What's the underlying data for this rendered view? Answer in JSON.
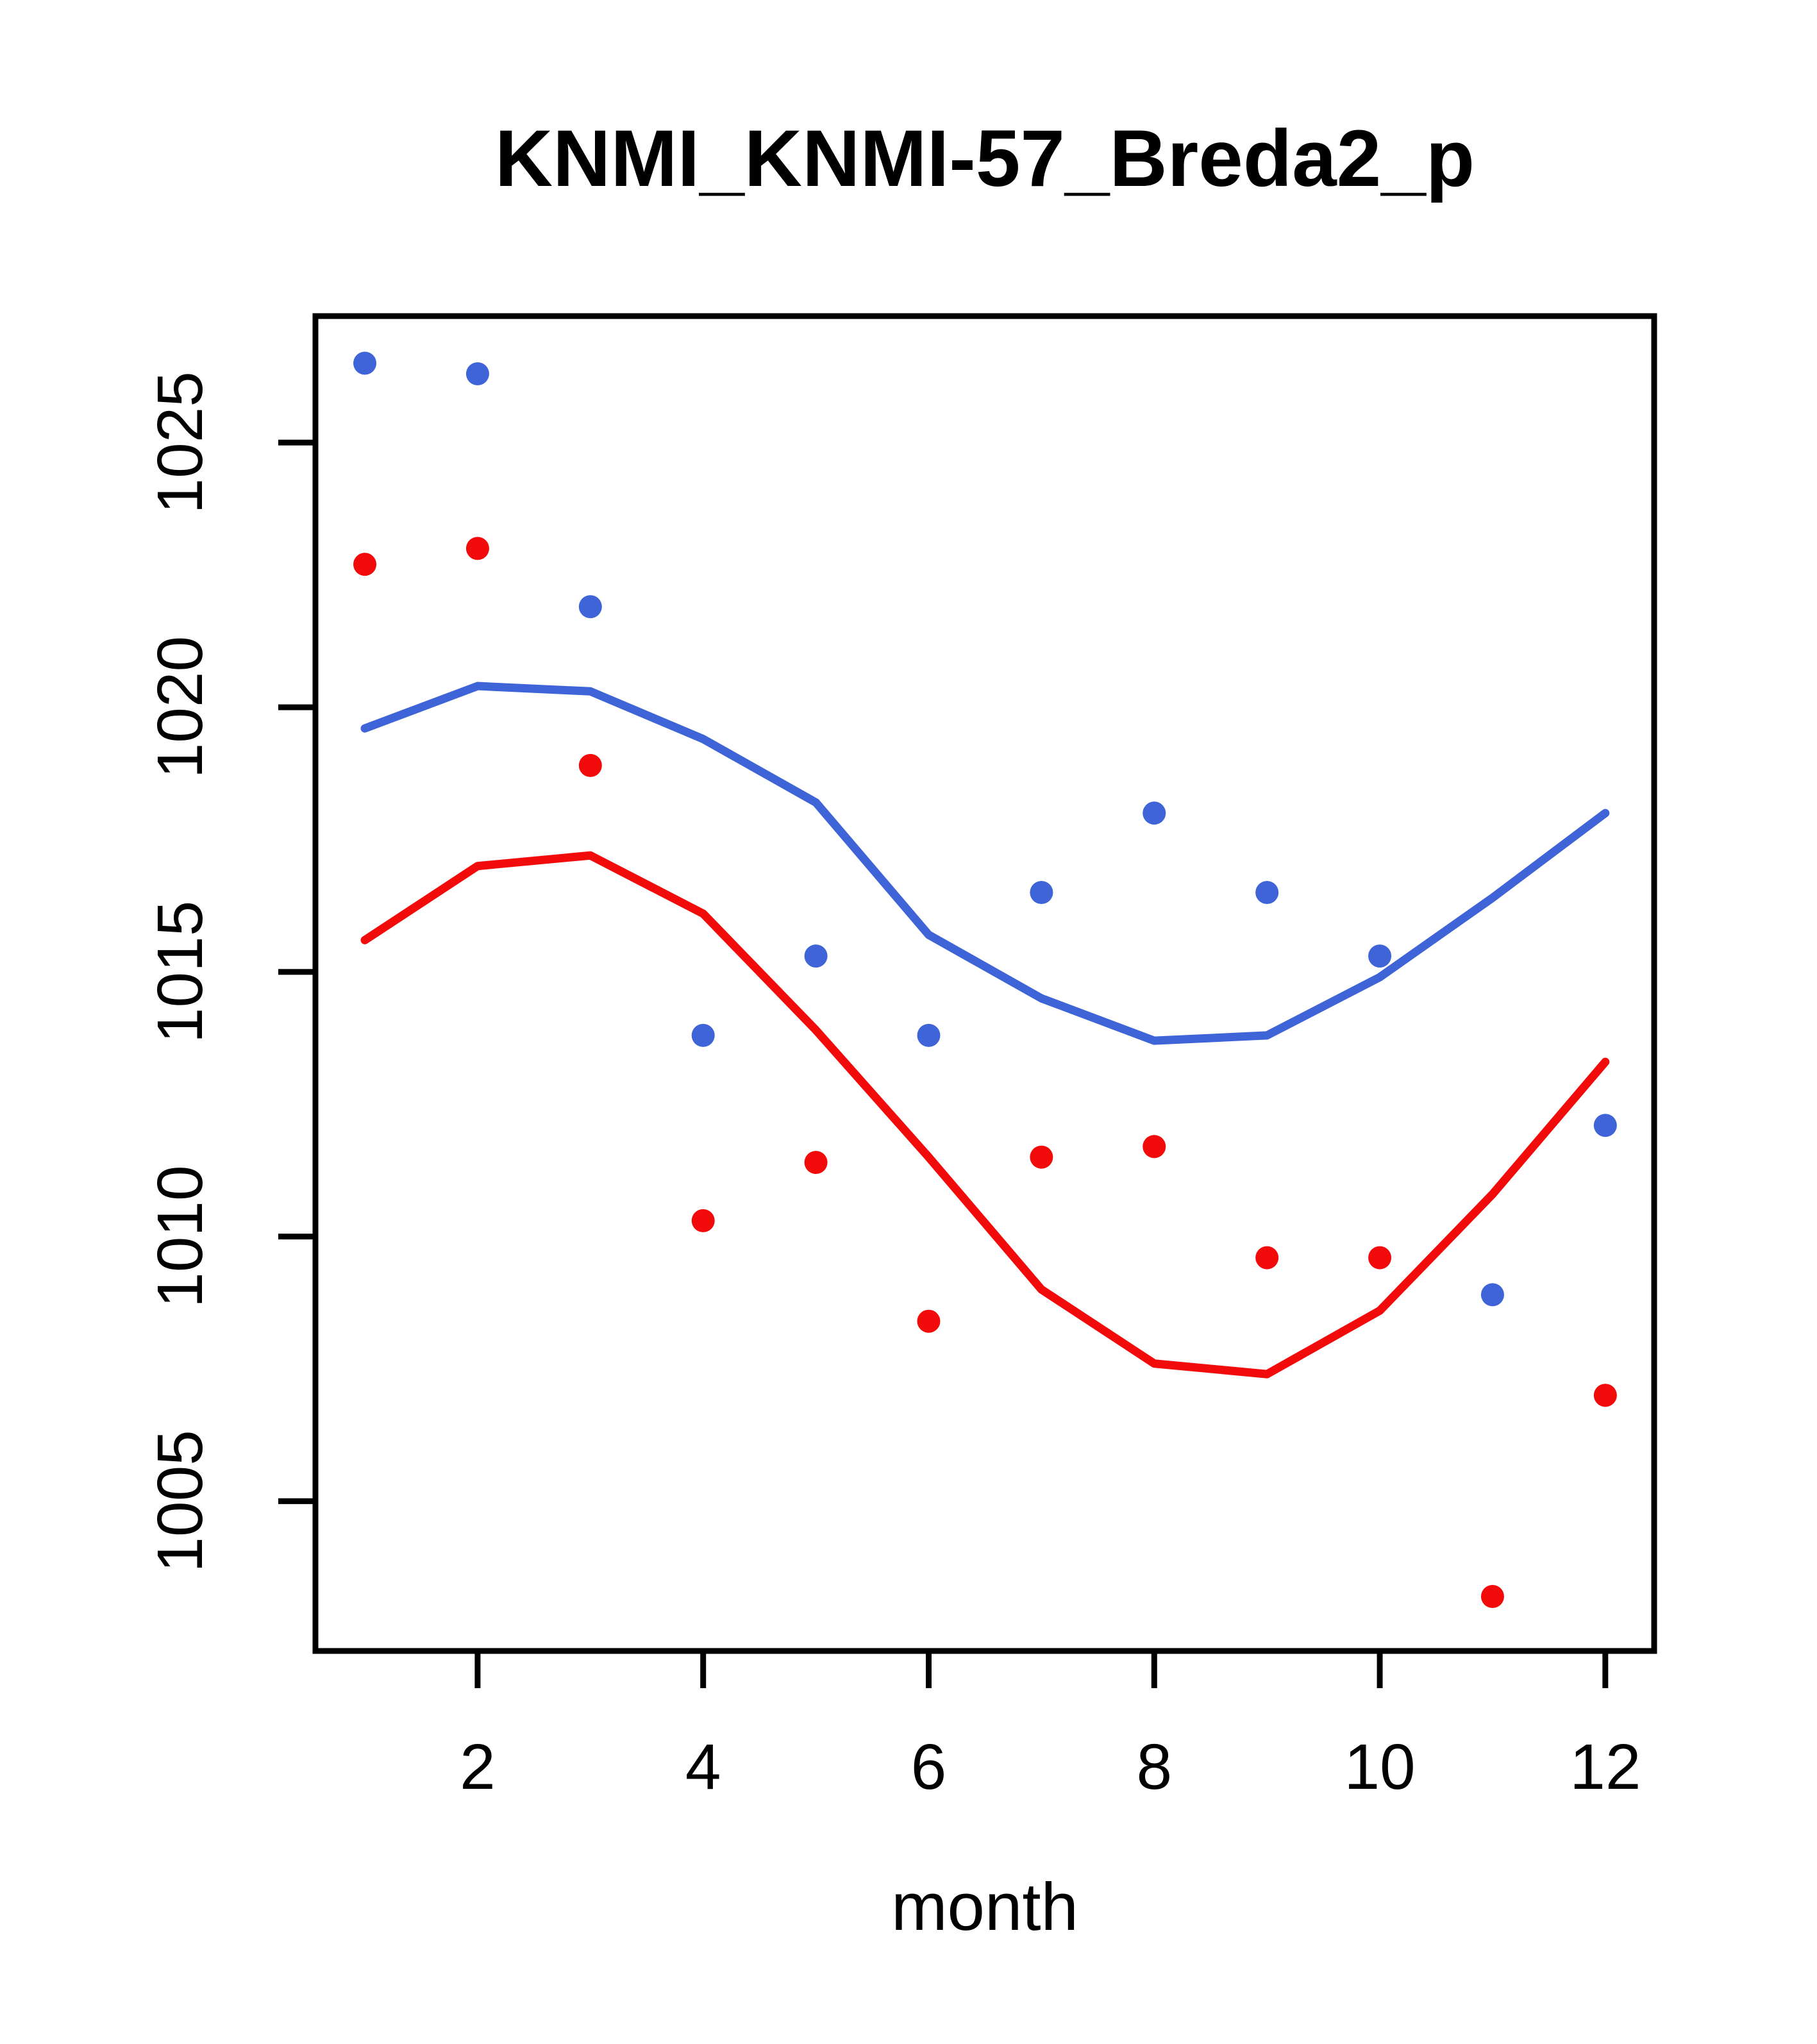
{
  "chart_data": {
    "type": "scatter",
    "title": "KNMI_KNMI-57_Breda2_p",
    "xlabel": "month",
    "ylabel": "",
    "x": [
      1,
      2,
      3,
      4,
      5,
      6,
      7,
      8,
      9,
      10,
      11,
      12
    ],
    "series": [
      {
        "name": "blue-points",
        "kind": "points",
        "color": "#3E64D7",
        "values": [
          1026.5,
          1026.3,
          1021.9,
          1013.8,
          1015.3,
          1013.8,
          1016.5,
          1018.0,
          1016.5,
          1015.3,
          1008.9,
          1012.1
        ]
      },
      {
        "name": "red-points",
        "kind": "points",
        "color": "#F20B0B",
        "values": [
          1022.7,
          1023.0,
          1018.9,
          1010.3,
          1011.4,
          1008.4,
          1011.5,
          1011.7,
          1009.6,
          1009.6,
          1003.2,
          1007.0
        ]
      },
      {
        "name": "blue-line",
        "kind": "line",
        "color": "#3E64D7",
        "values": [
          1019.6,
          1020.4,
          1020.3,
          1019.4,
          1018.2,
          1015.7,
          1014.5,
          1013.7,
          1013.8,
          1014.9,
          1016.4,
          1018.0
        ]
      },
      {
        "name": "red-line",
        "kind": "line",
        "color": "#F20B0B",
        "values": [
          1015.6,
          1017.0,
          1017.2,
          1016.1,
          1013.9,
          1011.5,
          1009.0,
          1007.6,
          1007.4,
          1008.6,
          1010.8,
          1013.3
        ]
      }
    ],
    "xticks": [
      2,
      4,
      6,
      8,
      10,
      12
    ],
    "yticks": [
      1005,
      1010,
      1015,
      1020,
      1025
    ],
    "xlim": [
      0.562,
      12.433
    ],
    "ylim": [
      1002.17,
      1027.39
    ],
    "grid": false,
    "legend": "none",
    "frame_color": "#000000"
  }
}
